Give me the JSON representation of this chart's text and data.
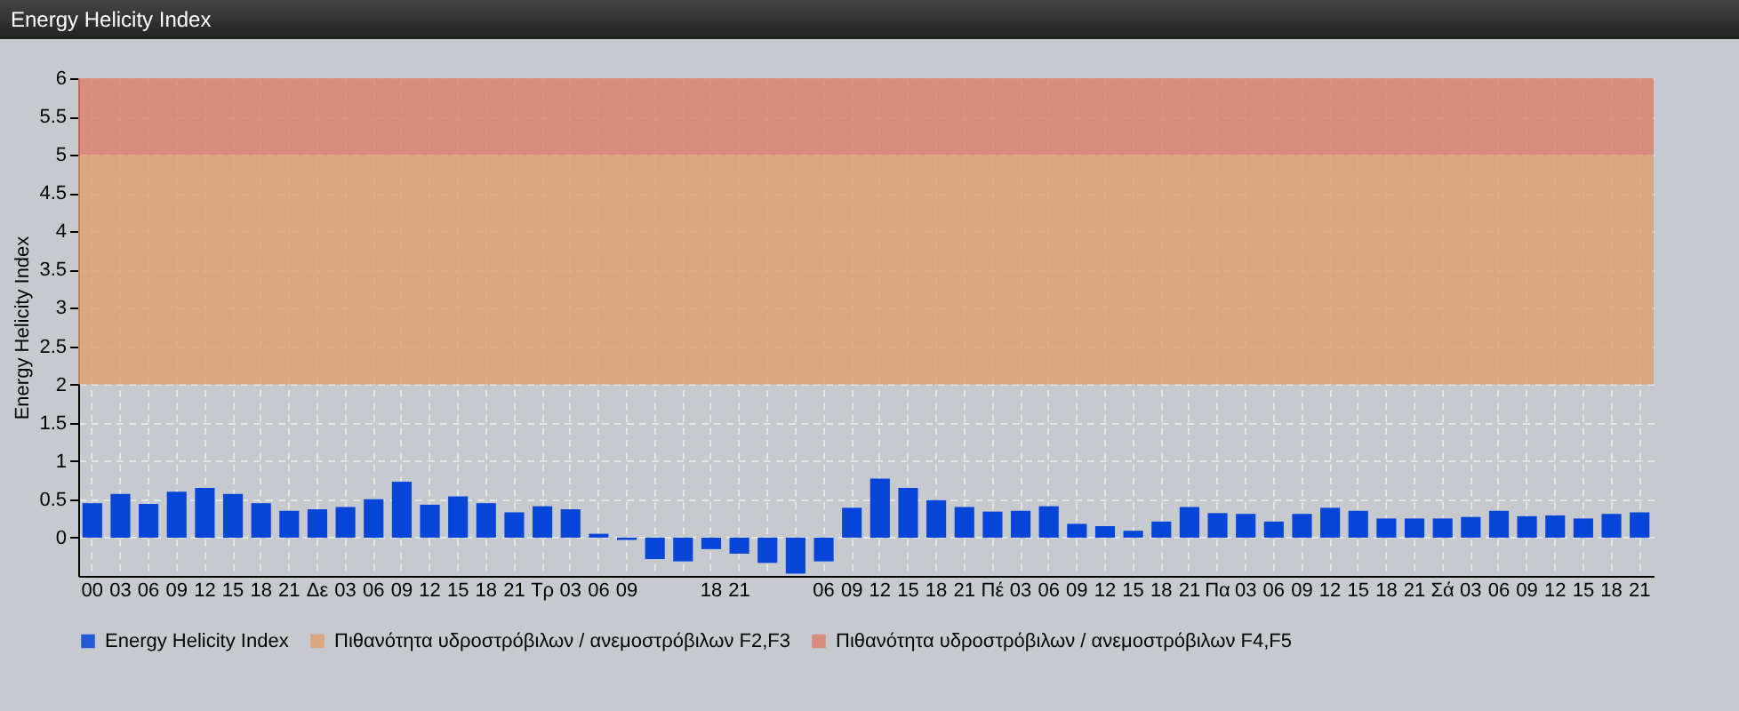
{
  "chart_data": {
    "type": "bar",
    "title": "Energy Helicity Index",
    "ylabel": "Energy Helicity Index",
    "categories": [
      "00",
      "03",
      "06",
      "09",
      "12",
      "15",
      "18",
      "21",
      "Δε",
      "03",
      "06",
      "09",
      "12",
      "15",
      "18",
      "21",
      "Τρ",
      "03",
      "06",
      "09",
      null,
      null,
      "18",
      "21",
      null,
      null,
      "06",
      "09",
      "12",
      "15",
      "18",
      "21",
      "Πέ",
      "03",
      "06",
      "09",
      "12",
      "15",
      "18",
      "21",
      "Πα",
      "03",
      "06",
      "09",
      "12",
      "15",
      "18",
      "21",
      "Σά",
      "03",
      "06",
      "09",
      "12",
      "15",
      "18",
      "21"
    ],
    "series": [
      {
        "name": "Energy Helicity Index",
        "color": "#0645d8",
        "values": [
          0.45,
          0.57,
          0.44,
          0.6,
          0.65,
          0.57,
          0.45,
          0.35,
          0.37,
          0.4,
          0.5,
          0.73,
          0.43,
          0.54,
          0.45,
          0.33,
          0.41,
          0.37,
          0.05,
          -0.03,
          -0.28,
          -0.31,
          -0.15,
          -0.21,
          -0.33,
          -0.47,
          -0.31,
          0.39,
          0.77,
          0.65,
          0.49,
          0.4,
          0.34,
          0.35,
          0.41,
          0.18,
          0.15,
          0.09,
          0.21,
          0.4,
          0.32,
          0.31,
          0.21,
          0.31,
          0.39,
          0.35,
          0.25,
          0.25,
          0.25,
          0.27,
          0.35,
          0.28,
          0.29,
          0.25,
          0.31,
          0.33
        ]
      }
    ],
    "ylim": [
      -0.5,
      6
    ],
    "yticks": [
      0,
      0.5,
      1,
      1.5,
      2,
      2.5,
      3,
      3.5,
      4,
      4.5,
      5,
      5.5,
      6
    ],
    "bands": [
      {
        "axis": "y",
        "from": 2,
        "to": 5,
        "label": "Πιθανότητα υδροστρόβιλων / ανεμοστρόβιλων F2,F3",
        "color": "#dca070"
      },
      {
        "axis": "y",
        "from": 5,
        "to": 6,
        "label": "Πιθανότητα υδροστρόβιλων / ανεμοστρόβιλων F4,F5",
        "color": "#dc8070"
      }
    ],
    "grid": true,
    "legend": "bottom"
  }
}
